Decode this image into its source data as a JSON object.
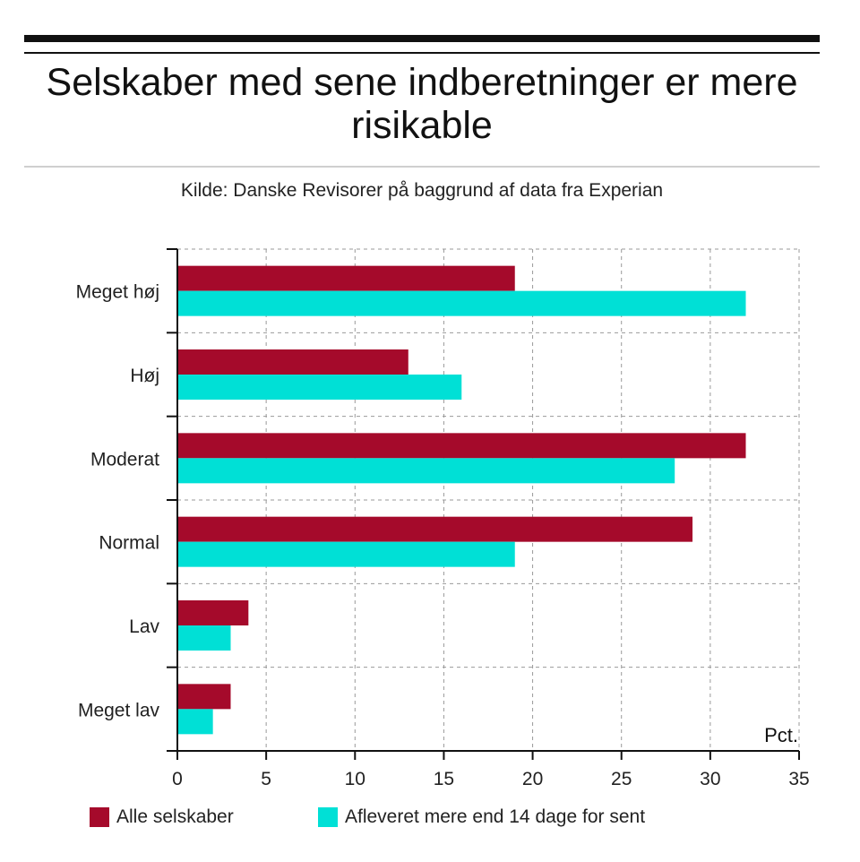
{
  "header": {
    "title": "Selskaber med sene indberetninger er mere risikable",
    "subtitle": "Kilde: Danske Revisorer på baggrund af data fra Experian"
  },
  "colors": {
    "series1": "#a50a2b",
    "series2": "#00e0d6",
    "grid": "#999999",
    "axis": "#111111"
  },
  "chart_data": {
    "type": "bar",
    "orientation": "horizontal",
    "title": "Selskaber med sene indberetninger er mere risikable",
    "subtitle": "Kilde: Danske Revisorer på baggrund af data fra Experian",
    "categories": [
      "Meget høj",
      "Høj",
      "Moderat",
      "Normal",
      "Lav",
      "Meget lav"
    ],
    "series": [
      {
        "name": "Alle selskaber",
        "values": [
          19,
          13,
          32,
          29,
          4,
          3
        ]
      },
      {
        "name": "Afleveret mere end 14 dage for sent",
        "values": [
          32,
          16,
          28,
          19,
          3,
          2
        ]
      }
    ],
    "xlabel": "Pct.",
    "ylabel": "",
    "xlim": [
      0,
      35
    ],
    "xticks": [
      "0",
      "5",
      "10",
      "15",
      "20",
      "25",
      "30",
      "35"
    ],
    "grid": true,
    "legend": "bottom"
  }
}
